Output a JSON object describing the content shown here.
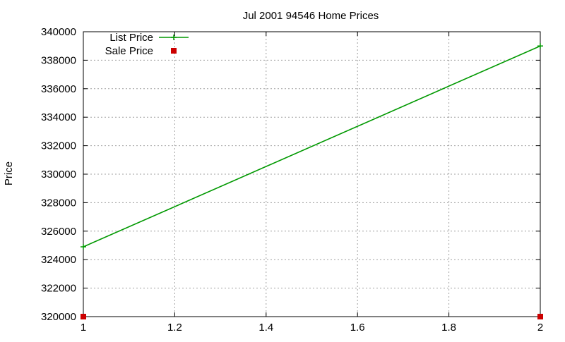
{
  "chart_data": {
    "type": "line",
    "title": "Jul 2001 94546 Home Prices",
    "xlabel": "",
    "ylabel": "Price",
    "xlim": [
      1,
      2
    ],
    "ylim": [
      320000,
      340000
    ],
    "x_ticks": [
      1,
      1.2,
      1.4,
      1.6,
      1.8,
      2
    ],
    "x_tick_labels": [
      "1",
      "1.2",
      "1.4",
      "1.6",
      "1.8",
      "2"
    ],
    "y_ticks": [
      320000,
      322000,
      324000,
      326000,
      328000,
      330000,
      332000,
      334000,
      336000,
      338000,
      340000
    ],
    "y_tick_labels": [
      "320000",
      "322000",
      "324000",
      "326000",
      "328000",
      "330000",
      "332000",
      "334000",
      "336000",
      "338000",
      "340000"
    ],
    "grid": true,
    "legend_position": "top-left",
    "series": [
      {
        "name": "List Price",
        "style": "lines+points",
        "color": "#009900",
        "x": [
          1,
          2
        ],
        "y": [
          324900,
          339000
        ]
      },
      {
        "name": "Sale Price",
        "style": "points",
        "color": "#cc0000",
        "x": [
          1,
          2
        ],
        "y": [
          320000,
          320000
        ]
      }
    ]
  }
}
